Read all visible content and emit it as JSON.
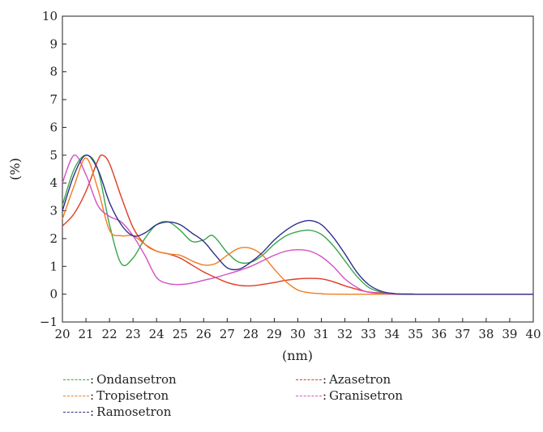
{
  "chart_data": {
    "type": "line",
    "title": "",
    "xlabel": "(nm)",
    "ylabel": "(%)",
    "xlim": [
      20,
      40
    ],
    "ylim": [
      -1,
      10
    ],
    "x_ticks": [
      20,
      21,
      22,
      23,
      24,
      25,
      26,
      27,
      28,
      29,
      30,
      31,
      32,
      33,
      34,
      35,
      36,
      37,
      38,
      39,
      40
    ],
    "y_ticks": [
      -1,
      0,
      1,
      2,
      3,
      4,
      5,
      6,
      7,
      8,
      9,
      10
    ],
    "grid": false,
    "legend_position": "bottom",
    "separator": ":",
    "series": [
      {
        "name": "Ondansetron",
        "color": "#3aa64a",
        "points": [
          [
            20,
            3.2
          ],
          [
            20.5,
            4.5
          ],
          [
            21,
            5.0
          ],
          [
            21.5,
            4.5
          ],
          [
            22,
            2.5
          ],
          [
            22.5,
            1.1
          ],
          [
            23,
            1.3
          ],
          [
            23.5,
            2.0
          ],
          [
            24,
            2.5
          ],
          [
            24.5,
            2.6
          ],
          [
            25,
            2.3
          ],
          [
            25.5,
            1.9
          ],
          [
            26,
            1.95
          ],
          [
            26.4,
            2.1
          ],
          [
            27,
            1.5
          ],
          [
            27.5,
            1.15
          ],
          [
            28,
            1.15
          ],
          [
            28.5,
            1.4
          ],
          [
            29,
            1.8
          ],
          [
            29.5,
            2.1
          ],
          [
            30,
            2.25
          ],
          [
            30.5,
            2.3
          ],
          [
            31,
            2.15
          ],
          [
            31.5,
            1.75
          ],
          [
            32,
            1.2
          ],
          [
            32.5,
            0.65
          ],
          [
            33,
            0.25
          ],
          [
            33.5,
            0.08
          ],
          [
            34,
            0.02
          ],
          [
            35,
            0
          ],
          [
            40,
            0
          ]
        ]
      },
      {
        "name": "Azasetron",
        "color": "#e03a24",
        "points": [
          [
            20,
            2.45
          ],
          [
            20.5,
            2.9
          ],
          [
            21,
            3.7
          ],
          [
            21.5,
            4.8
          ],
          [
            21.7,
            5.0
          ],
          [
            22,
            4.7
          ],
          [
            22.5,
            3.5
          ],
          [
            23,
            2.4
          ],
          [
            23.5,
            1.8
          ],
          [
            24,
            1.55
          ],
          [
            24.5,
            1.45
          ],
          [
            25,
            1.3
          ],
          [
            25.5,
            1.05
          ],
          [
            26,
            0.8
          ],
          [
            26.5,
            0.6
          ],
          [
            27,
            0.42
          ],
          [
            27.5,
            0.32
          ],
          [
            28,
            0.3
          ],
          [
            28.5,
            0.35
          ],
          [
            29,
            0.42
          ],
          [
            29.5,
            0.5
          ],
          [
            30,
            0.55
          ],
          [
            30.5,
            0.57
          ],
          [
            31,
            0.55
          ],
          [
            31.5,
            0.45
          ],
          [
            32,
            0.3
          ],
          [
            32.5,
            0.18
          ],
          [
            33,
            0.08
          ],
          [
            34,
            0.02
          ],
          [
            35,
            0
          ],
          [
            40,
            0
          ]
        ]
      },
      {
        "name": "Tropisetron",
        "color": "#f07d23",
        "points": [
          [
            20,
            2.7
          ],
          [
            20.5,
            3.9
          ],
          [
            21,
            4.9
          ],
          [
            21.5,
            3.8
          ],
          [
            22,
            2.3
          ],
          [
            22.5,
            2.1
          ],
          [
            23,
            2.1
          ],
          [
            23.5,
            1.8
          ],
          [
            24,
            1.55
          ],
          [
            24.5,
            1.45
          ],
          [
            25,
            1.4
          ],
          [
            25.5,
            1.2
          ],
          [
            26,
            1.05
          ],
          [
            26.5,
            1.1
          ],
          [
            27,
            1.4
          ],
          [
            27.5,
            1.65
          ],
          [
            28,
            1.65
          ],
          [
            28.5,
            1.4
          ],
          [
            29,
            0.9
          ],
          [
            29.5,
            0.45
          ],
          [
            30,
            0.15
          ],
          [
            30.5,
            0.05
          ],
          [
            31,
            0.02
          ],
          [
            32,
            0
          ],
          [
            40,
            0
          ]
        ]
      },
      {
        "name": "Granisetron",
        "color": "#d44fc4",
        "points": [
          [
            20,
            4.0
          ],
          [
            20.5,
            5.0
          ],
          [
            21,
            4.3
          ],
          [
            21.5,
            3.2
          ],
          [
            22,
            2.8
          ],
          [
            22.5,
            2.6
          ],
          [
            23,
            2.1
          ],
          [
            23.5,
            1.4
          ],
          [
            24,
            0.6
          ],
          [
            24.5,
            0.38
          ],
          [
            25,
            0.35
          ],
          [
            25.5,
            0.4
          ],
          [
            26,
            0.5
          ],
          [
            26.5,
            0.6
          ],
          [
            27,
            0.72
          ],
          [
            27.5,
            0.85
          ],
          [
            28,
            1.0
          ],
          [
            28.5,
            1.2
          ],
          [
            29,
            1.4
          ],
          [
            29.5,
            1.55
          ],
          [
            30,
            1.6
          ],
          [
            30.5,
            1.55
          ],
          [
            31,
            1.35
          ],
          [
            31.5,
            1.0
          ],
          [
            32,
            0.55
          ],
          [
            32.5,
            0.25
          ],
          [
            33,
            0.07
          ],
          [
            34,
            0.01
          ],
          [
            35,
            0
          ],
          [
            40,
            0
          ]
        ]
      },
      {
        "name": "Ramosetron",
        "color": "#2e2f8c",
        "points": [
          [
            20,
            3.0
          ],
          [
            20.5,
            4.3
          ],
          [
            21,
            5.0
          ],
          [
            21.5,
            4.5
          ],
          [
            22,
            3.3
          ],
          [
            22.5,
            2.5
          ],
          [
            23,
            2.1
          ],
          [
            23.5,
            2.2
          ],
          [
            24,
            2.5
          ],
          [
            24.5,
            2.6
          ],
          [
            25,
            2.5
          ],
          [
            25.5,
            2.2
          ],
          [
            26,
            1.9
          ],
          [
            26.5,
            1.4
          ],
          [
            27,
            0.95
          ],
          [
            27.5,
            0.9
          ],
          [
            28,
            1.15
          ],
          [
            28.5,
            1.5
          ],
          [
            29,
            1.95
          ],
          [
            29.5,
            2.3
          ],
          [
            30,
            2.55
          ],
          [
            30.5,
            2.65
          ],
          [
            31,
            2.5
          ],
          [
            31.5,
            2.05
          ],
          [
            32,
            1.45
          ],
          [
            32.5,
            0.8
          ],
          [
            33,
            0.35
          ],
          [
            33.5,
            0.12
          ],
          [
            34,
            0.03
          ],
          [
            35,
            0
          ],
          [
            40,
            0
          ]
        ]
      }
    ]
  }
}
